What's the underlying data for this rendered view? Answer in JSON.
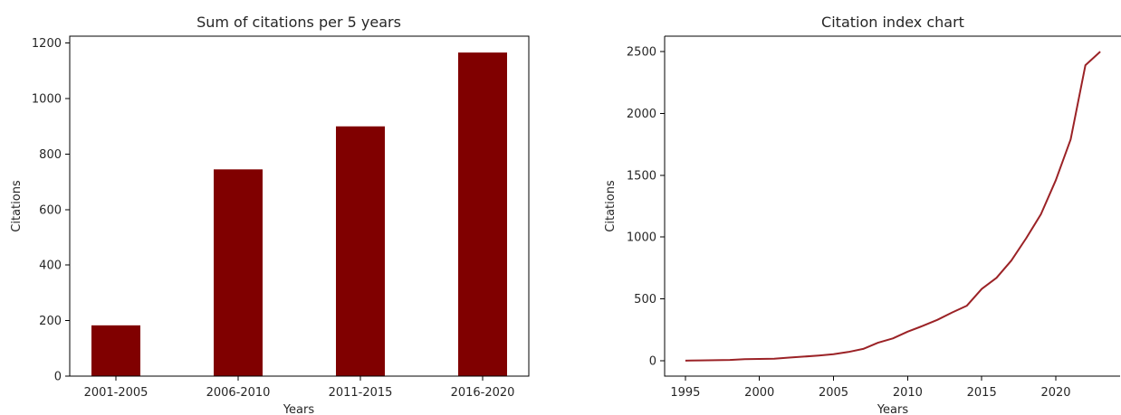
{
  "chart_data": [
    {
      "type": "bar",
      "title": "Sum of citations per 5 years",
      "xlabel": "Years",
      "ylabel": "Citations",
      "categories": [
        "2001-2005",
        "2006-2010",
        "2011-2015",
        "2016-2020"
      ],
      "values": [
        183,
        745,
        900,
        1166
      ],
      "ylim": [
        0,
        1225
      ],
      "yticks": [
        0,
        200,
        400,
        600,
        800,
        1000,
        1200
      ],
      "color": "#800000",
      "grid": false
    },
    {
      "type": "line",
      "title": "Citation index chart",
      "xlabel": "Years",
      "ylabel": "Citations",
      "x": [
        1995,
        1996,
        1997,
        1998,
        1999,
        2000,
        2001,
        2002,
        2003,
        2004,
        2005,
        2006,
        2007,
        2008,
        2009,
        2010,
        2011,
        2012,
        2013,
        2014,
        2015,
        2016,
        2017,
        2018,
        2019,
        2020,
        2021,
        2022,
        2023
      ],
      "values": [
        0,
        2,
        4,
        6,
        12,
        14,
        16,
        25,
        33,
        42,
        52,
        70,
        95,
        145,
        180,
        235,
        280,
        330,
        390,
        445,
        580,
        670,
        810,
        990,
        1185,
        1460,
        1790,
        2390,
        2500
      ],
      "xlim": [
        1993.6,
        2024.4
      ],
      "ylim": [
        -125,
        2625
      ],
      "xticks": [
        1995,
        2000,
        2005,
        2010,
        2015,
        2020
      ],
      "yticks": [
        0,
        500,
        1000,
        1500,
        2000,
        2500
      ],
      "color": "#9b2226",
      "grid": false
    }
  ]
}
